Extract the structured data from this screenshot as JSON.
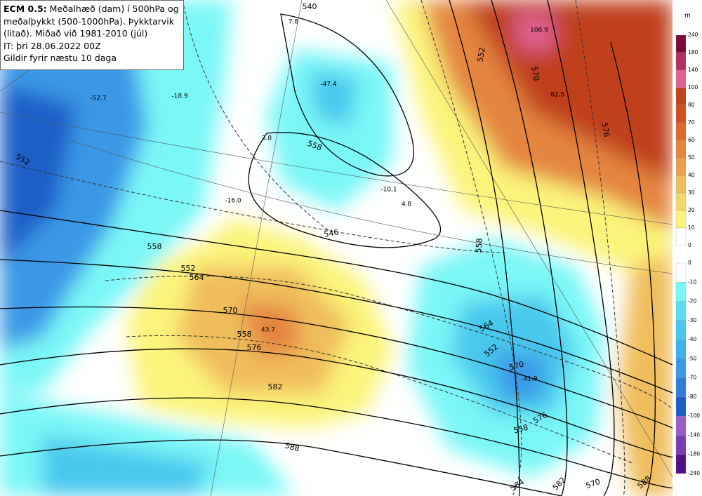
{
  "header": {
    "model": "ECM 0.5:",
    "lines": [
      "Meðalhæð (dam) í 500hPa og",
      "meðalþykkt (500-1000hPa). Þykktarvik",
      "(litað). Miðað við 1981-2010 (júl)",
      "IT: þri 28.06.2022 00Z",
      "Gildir fyrir næstu 10 daga"
    ]
  },
  "legend": {
    "unit": "m",
    "positive": [
      240,
      180,
      140,
      100,
      80,
      70,
      60,
      50,
      40,
      30,
      20,
      10,
      0
    ],
    "negative": [
      0,
      -10,
      -20,
      -30,
      -40,
      -50,
      -70,
      -80,
      -100,
      -140,
      -180,
      -240
    ]
  },
  "contour_labels": [
    "540",
    "552",
    "558",
    "546",
    "558",
    "552",
    "564",
    "570",
    "558",
    "576",
    "582",
    "588",
    "558",
    "564",
    "552",
    "570",
    "576",
    "558",
    "564",
    "582",
    "570",
    "588",
    "576",
    "570",
    "552"
  ],
  "anomaly_labels": [
    "-52.7",
    "-18.9",
    "7.8",
    "-47.4",
    "3.8",
    "-16.0",
    "-10.1",
    "4.8",
    "108.9",
    "82.5",
    "43.7",
    "-41.9"
  ]
}
